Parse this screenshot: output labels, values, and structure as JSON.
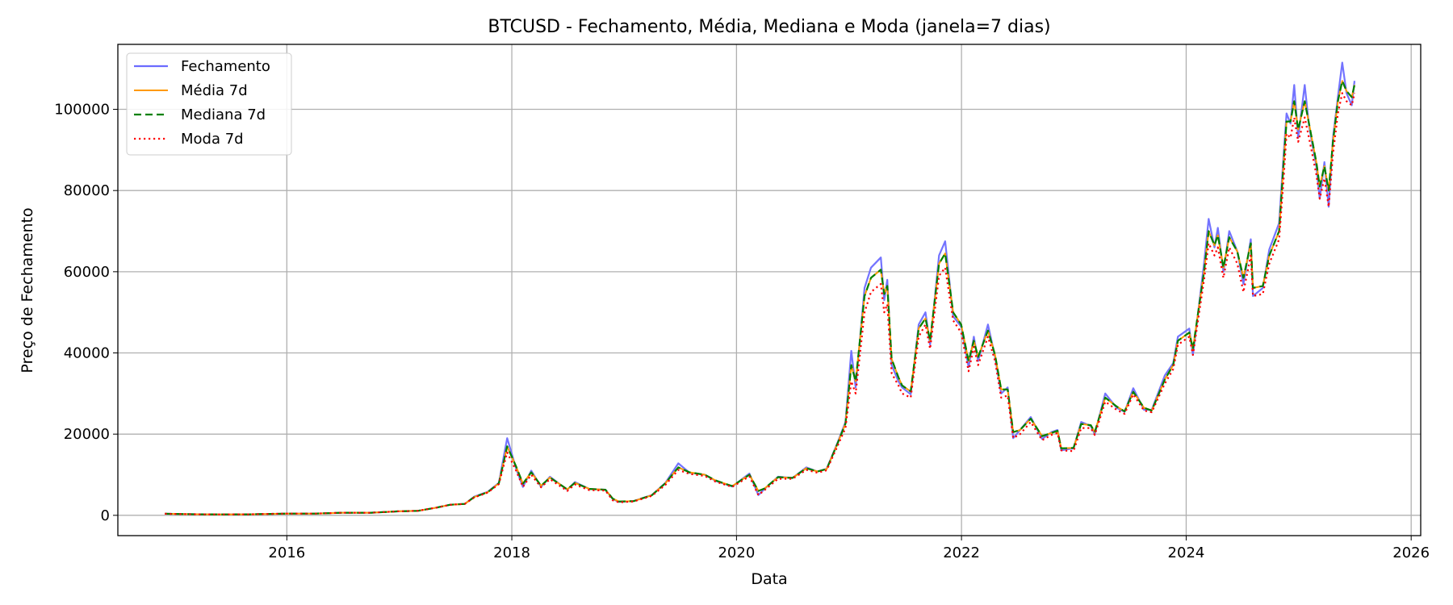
{
  "chart_data": {
    "type": "line",
    "title": "BTCUSD - Fechamento, Média, Mediana e Moda (janela=7 dias)",
    "xlabel": "Data",
    "ylabel": "Preço de Fechamento",
    "xlim": [
      "2014-07-01",
      "2026-02-01"
    ],
    "ylim": [
      -5000,
      116000
    ],
    "x_ticks": [
      "2016",
      "2018",
      "2020",
      "2022",
      "2024",
      "2026"
    ],
    "y_ticks": [
      "0",
      "20000",
      "40000",
      "60000",
      "80000",
      "100000"
    ],
    "grid": true,
    "legend_position": "top-left",
    "x": [
      "2014-12-01",
      "2015-03-01",
      "2015-06-01",
      "2015-09-01",
      "2016-01-01",
      "2016-04-01",
      "2016-07-01",
      "2016-10-01",
      "2017-01-01",
      "2017-03-01",
      "2017-05-01",
      "2017-06-15",
      "2017-08-01",
      "2017-09-01",
      "2017-10-15",
      "2017-11-20",
      "2017-12-17",
      "2018-01-15",
      "2018-02-06",
      "2018-03-05",
      "2018-04-06",
      "2018-05-05",
      "2018-06-30",
      "2018-07-25",
      "2018-09-10",
      "2018-11-01",
      "2018-11-25",
      "2018-12-15",
      "2019-02-01",
      "2019-04-01",
      "2019-05-15",
      "2019-06-26",
      "2019-08-01",
      "2019-09-20",
      "2019-10-25",
      "2019-12-18",
      "2020-02-12",
      "2020-03-12",
      "2020-04-01",
      "2020-05-15",
      "2020-07-01",
      "2020-08-15",
      "2020-09-20",
      "2020-10-20",
      "2020-11-25",
      "2020-12-20",
      "2021-01-08",
      "2021-01-22",
      "2021-02-20",
      "2021-03-13",
      "2021-04-14",
      "2021-04-25",
      "2021-05-05",
      "2021-05-19",
      "2021-06-10",
      "2021-06-22",
      "2021-07-20",
      "2021-08-15",
      "2021-09-06",
      "2021-09-21",
      "2021-10-20",
      "2021-11-09",
      "2021-12-05",
      "2021-12-31",
      "2022-01-24",
      "2022-02-10",
      "2022-02-24",
      "2022-03-28",
      "2022-04-20",
      "2022-05-10",
      "2022-05-31",
      "2022-06-18",
      "2022-07-10",
      "2022-08-14",
      "2022-09-20",
      "2022-10-20",
      "2022-11-09",
      "2022-11-21",
      "2022-12-31",
      "2023-01-25",
      "2023-02-25",
      "2023-03-10",
      "2023-04-13",
      "2023-05-20",
      "2023-06-15",
      "2023-07-13",
      "2023-08-17",
      "2023-09-11",
      "2023-10-24",
      "2023-11-20",
      "2023-12-05",
      "2024-01-11",
      "2024-01-23",
      "2024-02-28",
      "2024-03-14",
      "2024-04-02",
      "2024-04-13",
      "2024-05-01",
      "2024-05-20",
      "2024-06-15",
      "2024-07-05",
      "2024-07-29",
      "2024-08-05",
      "2024-09-06",
      "2024-09-27",
      "2024-10-29",
      "2024-11-12",
      "2024-11-22",
      "2024-12-05",
      "2024-12-17",
      "2024-12-30",
      "2025-01-20",
      "2025-02-03",
      "2025-02-27",
      "2025-03-10",
      "2025-03-25",
      "2025-04-08",
      "2025-04-22",
      "2025-05-08",
      "2025-05-22",
      "2025-06-05",
      "2025-06-22",
      "2025-07-01"
    ],
    "series": [
      {
        "name": "Fechamento",
        "color": "#6b6bff",
        "dash": "",
        "width": 2.2,
        "values": [
          380,
          260,
          230,
          240,
          430,
          420,
          650,
          640,
          1000,
          1100,
          1900,
          2600,
          2800,
          4600,
          5800,
          8000,
          19000,
          11500,
          7000,
          11000,
          7000,
          9500,
          6300,
          8200,
          6500,
          6300,
          4000,
          3300,
          3500,
          5000,
          8000,
          12800,
          10500,
          10000,
          8500,
          7100,
          10300,
          5000,
          6500,
          9500,
          9200,
          11800,
          10800,
          11500,
          18000,
          23000,
          40500,
          31500,
          56000,
          61000,
          63500,
          53000,
          58000,
          37000,
          33000,
          31500,
          29800,
          47000,
          50000,
          42000,
          64000,
          67500,
          49000,
          46500,
          36500,
          44000,
          38000,
          47000,
          39000,
          30000,
          31500,
          19000,
          21000,
          24200,
          18800,
          20500,
          21000,
          16000,
          16500,
          23000,
          22000,
          20000,
          30000,
          26500,
          25500,
          31300,
          26000,
          26000,
          34500,
          37500,
          44000,
          46000,
          39500,
          62000,
          73000,
          66000,
          70800,
          60000,
          70000,
          65000,
          57000,
          68000,
          54000,
          56000,
          65500,
          72000,
          88000,
          99000,
          96500,
          106000,
          93000,
          106000,
          96000,
          86000,
          78000,
          87000,
          76000,
          93000,
          103000,
          111500,
          104000,
          101000,
          107000
        ]
      },
      {
        "name": "Média 7d",
        "color": "#ff9900",
        "dash": "",
        "width": 2.0,
        "values": [
          380,
          260,
          230,
          240,
          430,
          420,
          650,
          640,
          1000,
          1100,
          1900,
          2600,
          2800,
          4500,
          5700,
          7900,
          17000,
          12000,
          7800,
          10600,
          7300,
          9300,
          6400,
          8000,
          6500,
          6300,
          4100,
          3400,
          3500,
          4950,
          7900,
          11800,
          10600,
          10000,
          8600,
          7200,
          10000,
          6000,
          6600,
          9400,
          9200,
          11600,
          10800,
          11400,
          17800,
          22600,
          37000,
          33000,
          54000,
          58500,
          60500,
          54500,
          56500,
          38500,
          34000,
          32000,
          30500,
          46000,
          48500,
          43000,
          62000,
          64500,
          50000,
          47000,
          38000,
          43000,
          39000,
          45500,
          39500,
          31000,
          31000,
          20500,
          21000,
          23800,
          19500,
          20300,
          20800,
          16500,
          16600,
          22500,
          22200,
          20500,
          29000,
          26800,
          25600,
          30400,
          26500,
          25800,
          33500,
          37000,
          43000,
          45000,
          41000,
          60000,
          70000,
          66500,
          69000,
          61000,
          68500,
          65000,
          58500,
          67000,
          56000,
          56500,
          64000,
          70000,
          86000,
          97000,
          97000,
          102000,
          95000,
          102000,
          96500,
          87000,
          81000,
          86000,
          80000,
          92000,
          102000,
          107000,
          104500,
          103000,
          106000
        ]
      },
      {
        "name": "Mediana 7d",
        "color": "#008000",
        "dash": "9 5",
        "width": 2.2,
        "values": [
          380,
          260,
          230,
          240,
          430,
          420,
          650,
          640,
          1000,
          1100,
          1900,
          2600,
          2800,
          4500,
          5700,
          7900,
          17000,
          12000,
          7800,
          10600,
          7300,
          9300,
          6400,
          8000,
          6500,
          6300,
          4100,
          3400,
          3500,
          4950,
          7900,
          11800,
          10600,
          10000,
          8600,
          7200,
          10000,
          6000,
          6600,
          9400,
          9200,
          11600,
          10800,
          11400,
          17800,
          22600,
          37000,
          33000,
          54000,
          58500,
          60500,
          54500,
          56500,
          38500,
          34000,
          32000,
          30500,
          46000,
          48500,
          43000,
          62000,
          64500,
          50000,
          47000,
          38000,
          43000,
          39000,
          45500,
          39500,
          31000,
          31000,
          20500,
          21000,
          23800,
          19500,
          20300,
          20800,
          16500,
          16600,
          22500,
          22200,
          20500,
          29000,
          26800,
          25600,
          30400,
          26500,
          25800,
          33500,
          37000,
          43000,
          45000,
          41000,
          60000,
          70000,
          66500,
          69000,
          61000,
          68500,
          65000,
          58500,
          67000,
          56000,
          56500,
          64000,
          70000,
          86000,
          97000,
          97000,
          102000,
          95000,
          102000,
          96500,
          87000,
          81000,
          86000,
          80000,
          92000,
          102000,
          107000,
          104500,
          103000,
          106000
        ]
      },
      {
        "name": "Moda 7d",
        "color": "#ff0000",
        "dash": "2.2 3.8",
        "width": 2.2,
        "values": [
          380,
          260,
          230,
          240,
          430,
          420,
          650,
          640,
          1000,
          1100,
          1900,
          2600,
          2800,
          4400,
          5600,
          7700,
          15500,
          11000,
          7000,
          10000,
          6900,
          8900,
          6000,
          7600,
          6200,
          6100,
          3700,
          3200,
          3400,
          4800,
          7500,
          11200,
          10200,
          9700,
          8300,
          7000,
          9600,
          5000,
          6200,
          9000,
          9000,
          11200,
          10500,
          11100,
          17200,
          21500,
          33000,
          30000,
          50000,
          55000,
          57000,
          50000,
          52000,
          35000,
          32000,
          30000,
          29000,
          44000,
          47000,
          41000,
          59000,
          61000,
          48000,
          45000,
          35500,
          41500,
          37000,
          44000,
          38000,
          29000,
          29500,
          19000,
          20000,
          23000,
          18500,
          19800,
          20300,
          16000,
          15800,
          21500,
          21500,
          19800,
          28000,
          26000,
          25000,
          29800,
          25800,
          25400,
          32500,
          36000,
          42000,
          44000,
          39500,
          58000,
          67000,
          64000,
          66000,
          58500,
          66000,
          62000,
          55000,
          64000,
          54000,
          54500,
          62000,
          68000,
          82000,
          94000,
          93000,
          98000,
          92000,
          98000,
          93000,
          84000,
          78000,
          83000,
          76000,
          89000,
          99000,
          104000,
          102000,
          101000,
          104000
        ]
      }
    ]
  }
}
